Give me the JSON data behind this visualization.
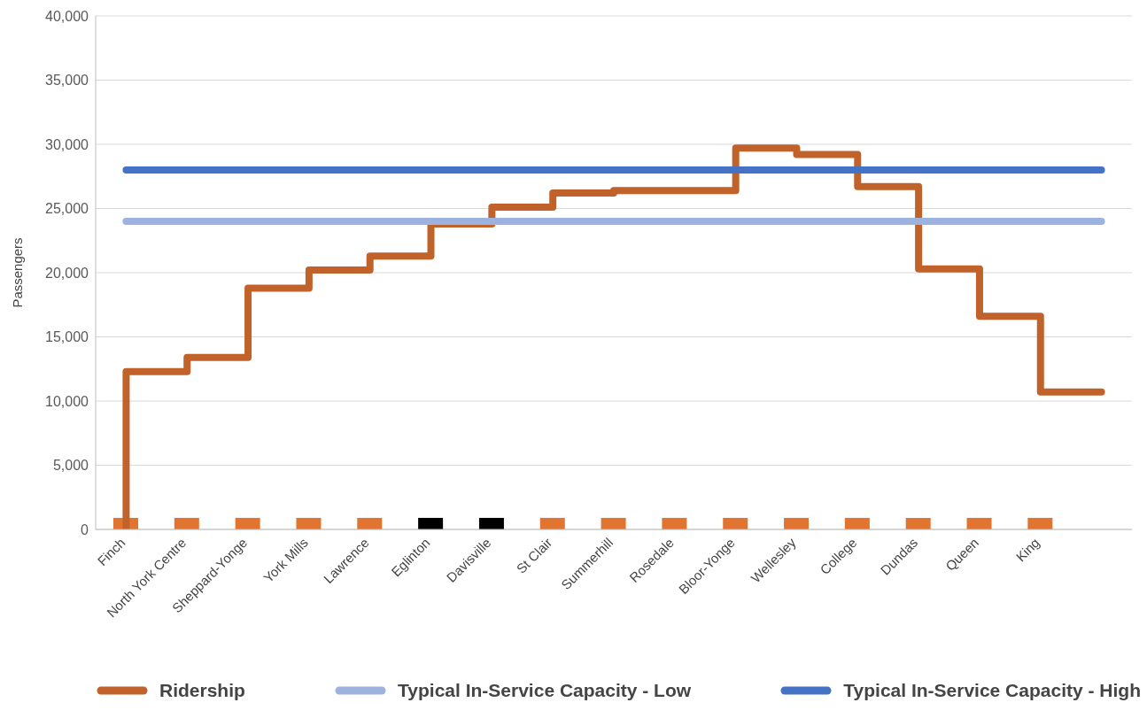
{
  "chart_data": {
    "type": "line",
    "ylabel": "Passengers",
    "categories": [
      "Finch",
      "North York Centre",
      "Sheppard-Yonge",
      "York Mills",
      "Lawrence",
      "Eglinton",
      "Davisville",
      "St Clair",
      "Summerhill",
      "Rosedale",
      "Bloor-Yonge",
      "Wellesley",
      "College",
      "Dundas",
      "Queen",
      "King",
      null
    ],
    "series": [
      {
        "name": "Ridership",
        "type": "step",
        "color": "#c0622a",
        "values": [
          0,
          12300,
          13400,
          18800,
          20200,
          21300,
          23800,
          25100,
          26200,
          26400,
          26400,
          29700,
          29200,
          26700,
          20300,
          16600,
          10700
        ]
      },
      {
        "name": "Typical In-Service Capacity - Low",
        "color": "#9db3df",
        "values": [
          24000,
          24000,
          24000,
          24000,
          24000,
          24000,
          24000,
          24000,
          24000,
          24000,
          24000,
          24000,
          24000,
          24000,
          24000,
          24000,
          24000
        ]
      },
      {
        "name": "Typical In-Service Capacity - High",
        "color": "#4472c4",
        "values": [
          28000,
          28000,
          28000,
          28000,
          28000,
          28000,
          28000,
          28000,
          28000,
          28000,
          28000,
          28000,
          28000,
          28000,
          28000,
          28000,
          28000
        ]
      },
      {
        "type": "bar",
        "colors": [
          "#e07430",
          "#e07430",
          "#e07430",
          "#e07430",
          "#e07430",
          "#000000",
          "#000000",
          "#e07430",
          "#e07430",
          "#e07430",
          "#e07430",
          "#e07430",
          "#e07430",
          "#e07430",
          "#e07430",
          "#e07430",
          null
        ],
        "values": [
          900,
          900,
          900,
          900,
          900,
          900,
          900,
          900,
          900,
          900,
          900,
          900,
          900,
          900,
          900,
          900,
          null
        ]
      }
    ],
    "ylim": [
      0,
      40000
    ],
    "yticks": [
      0,
      {
        "value": 5000,
        "label": "5,000"
      },
      {
        "value": 10000,
        "label": "10,000"
      },
      {
        "value": 15000,
        "label": "15,000"
      },
      {
        "value": 20000,
        "label": "20,000"
      },
      {
        "value": 25000,
        "label": "25,000"
      },
      {
        "value": 30000,
        "label": "30,000"
      },
      {
        "value": 35000,
        "label": "35,000"
      },
      {
        "value": 40000,
        "label": "40,000"
      }
    ],
    "grid": "y",
    "legend": "bottom",
    "marker": "none",
    "line_style": "solid"
  }
}
